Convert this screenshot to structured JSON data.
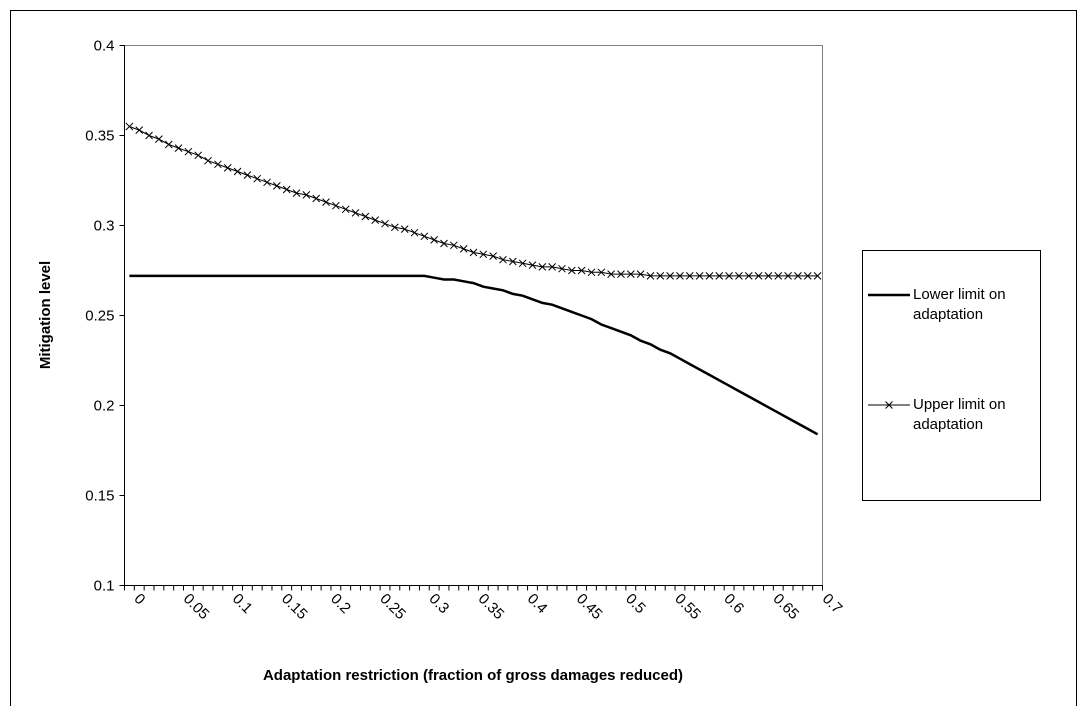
{
  "chart_data": {
    "type": "line",
    "x_label": "Adaptation restriction (fraction of gross damages reduced)",
    "y_label": "Mitigation level",
    "categories": [
      "0",
      null,
      null,
      null,
      null,
      "0.05",
      null,
      null,
      null,
      null,
      "0.1",
      null,
      null,
      null,
      null,
      "0.15",
      null,
      null,
      null,
      null,
      "0.2",
      null,
      null,
      null,
      null,
      "0.25",
      null,
      null,
      null,
      null,
      "0.3",
      null,
      null,
      null,
      null,
      "0.35",
      null,
      null,
      null,
      null,
      "0.4",
      null,
      null,
      null,
      null,
      "0.45",
      null,
      null,
      null,
      null,
      "0.5",
      null,
      null,
      null,
      null,
      "0.55",
      null,
      null,
      null,
      null,
      "0.6",
      null,
      null,
      null,
      null,
      "0.65",
      null,
      null,
      null,
      null,
      "0.7"
    ],
    "ylim": [
      0.1,
      0.4
    ],
    "yticks": [
      0.1,
      0.15,
      0.2,
      0.25,
      0.3,
      0.35,
      0.4
    ],
    "grid": false,
    "legend": "right",
    "series": [
      {
        "name": "Lower limit on adaptation",
        "color": "#000000",
        "marker": "none",
        "values": [
          0.272,
          0.272,
          0.272,
          0.272,
          0.272,
          0.272,
          0.272,
          0.272,
          0.272,
          0.272,
          0.272,
          0.272,
          0.272,
          0.272,
          0.272,
          0.272,
          0.272,
          0.272,
          0.272,
          0.272,
          0.272,
          0.272,
          0.272,
          0.272,
          0.272,
          0.272,
          0.272,
          0.272,
          0.272,
          0.272,
          0.272,
          0.271,
          0.27,
          0.27,
          0.269,
          0.268,
          0.266,
          0.265,
          0.264,
          0.262,
          0.261,
          0.259,
          0.257,
          0.256,
          0.254,
          0.252,
          0.25,
          0.248,
          0.245,
          0.243,
          0.241,
          0.239,
          0.236,
          0.234,
          0.231,
          0.229,
          0.226,
          0.223,
          0.22,
          0.217,
          0.214,
          0.211,
          0.208,
          0.205,
          0.202,
          0.199,
          0.196,
          0.193,
          0.19,
          0.187,
          0.184
        ]
      },
      {
        "name": "Upper limit on adaptation",
        "color": "#000000",
        "marker": "x",
        "values": [
          0.355,
          0.353,
          0.35,
          0.348,
          0.345,
          0.343,
          0.341,
          0.339,
          0.336,
          0.334,
          0.332,
          0.33,
          0.328,
          0.326,
          0.324,
          0.322,
          0.32,
          0.318,
          0.317,
          0.315,
          0.313,
          0.311,
          0.309,
          0.307,
          0.305,
          0.303,
          0.301,
          0.299,
          0.298,
          0.296,
          0.294,
          0.292,
          0.29,
          0.289,
          0.287,
          0.285,
          0.284,
          0.283,
          0.281,
          0.28,
          0.279,
          0.278,
          0.277,
          0.277,
          0.276,
          0.275,
          0.275,
          0.274,
          0.274,
          0.273,
          0.273,
          0.273,
          0.273,
          0.272,
          0.272,
          0.272,
          0.272,
          0.272,
          0.272,
          0.272,
          0.272,
          0.272,
          0.272,
          0.272,
          0.272,
          0.272,
          0.272,
          0.272,
          0.272,
          0.272,
          0.272
        ]
      }
    ]
  }
}
